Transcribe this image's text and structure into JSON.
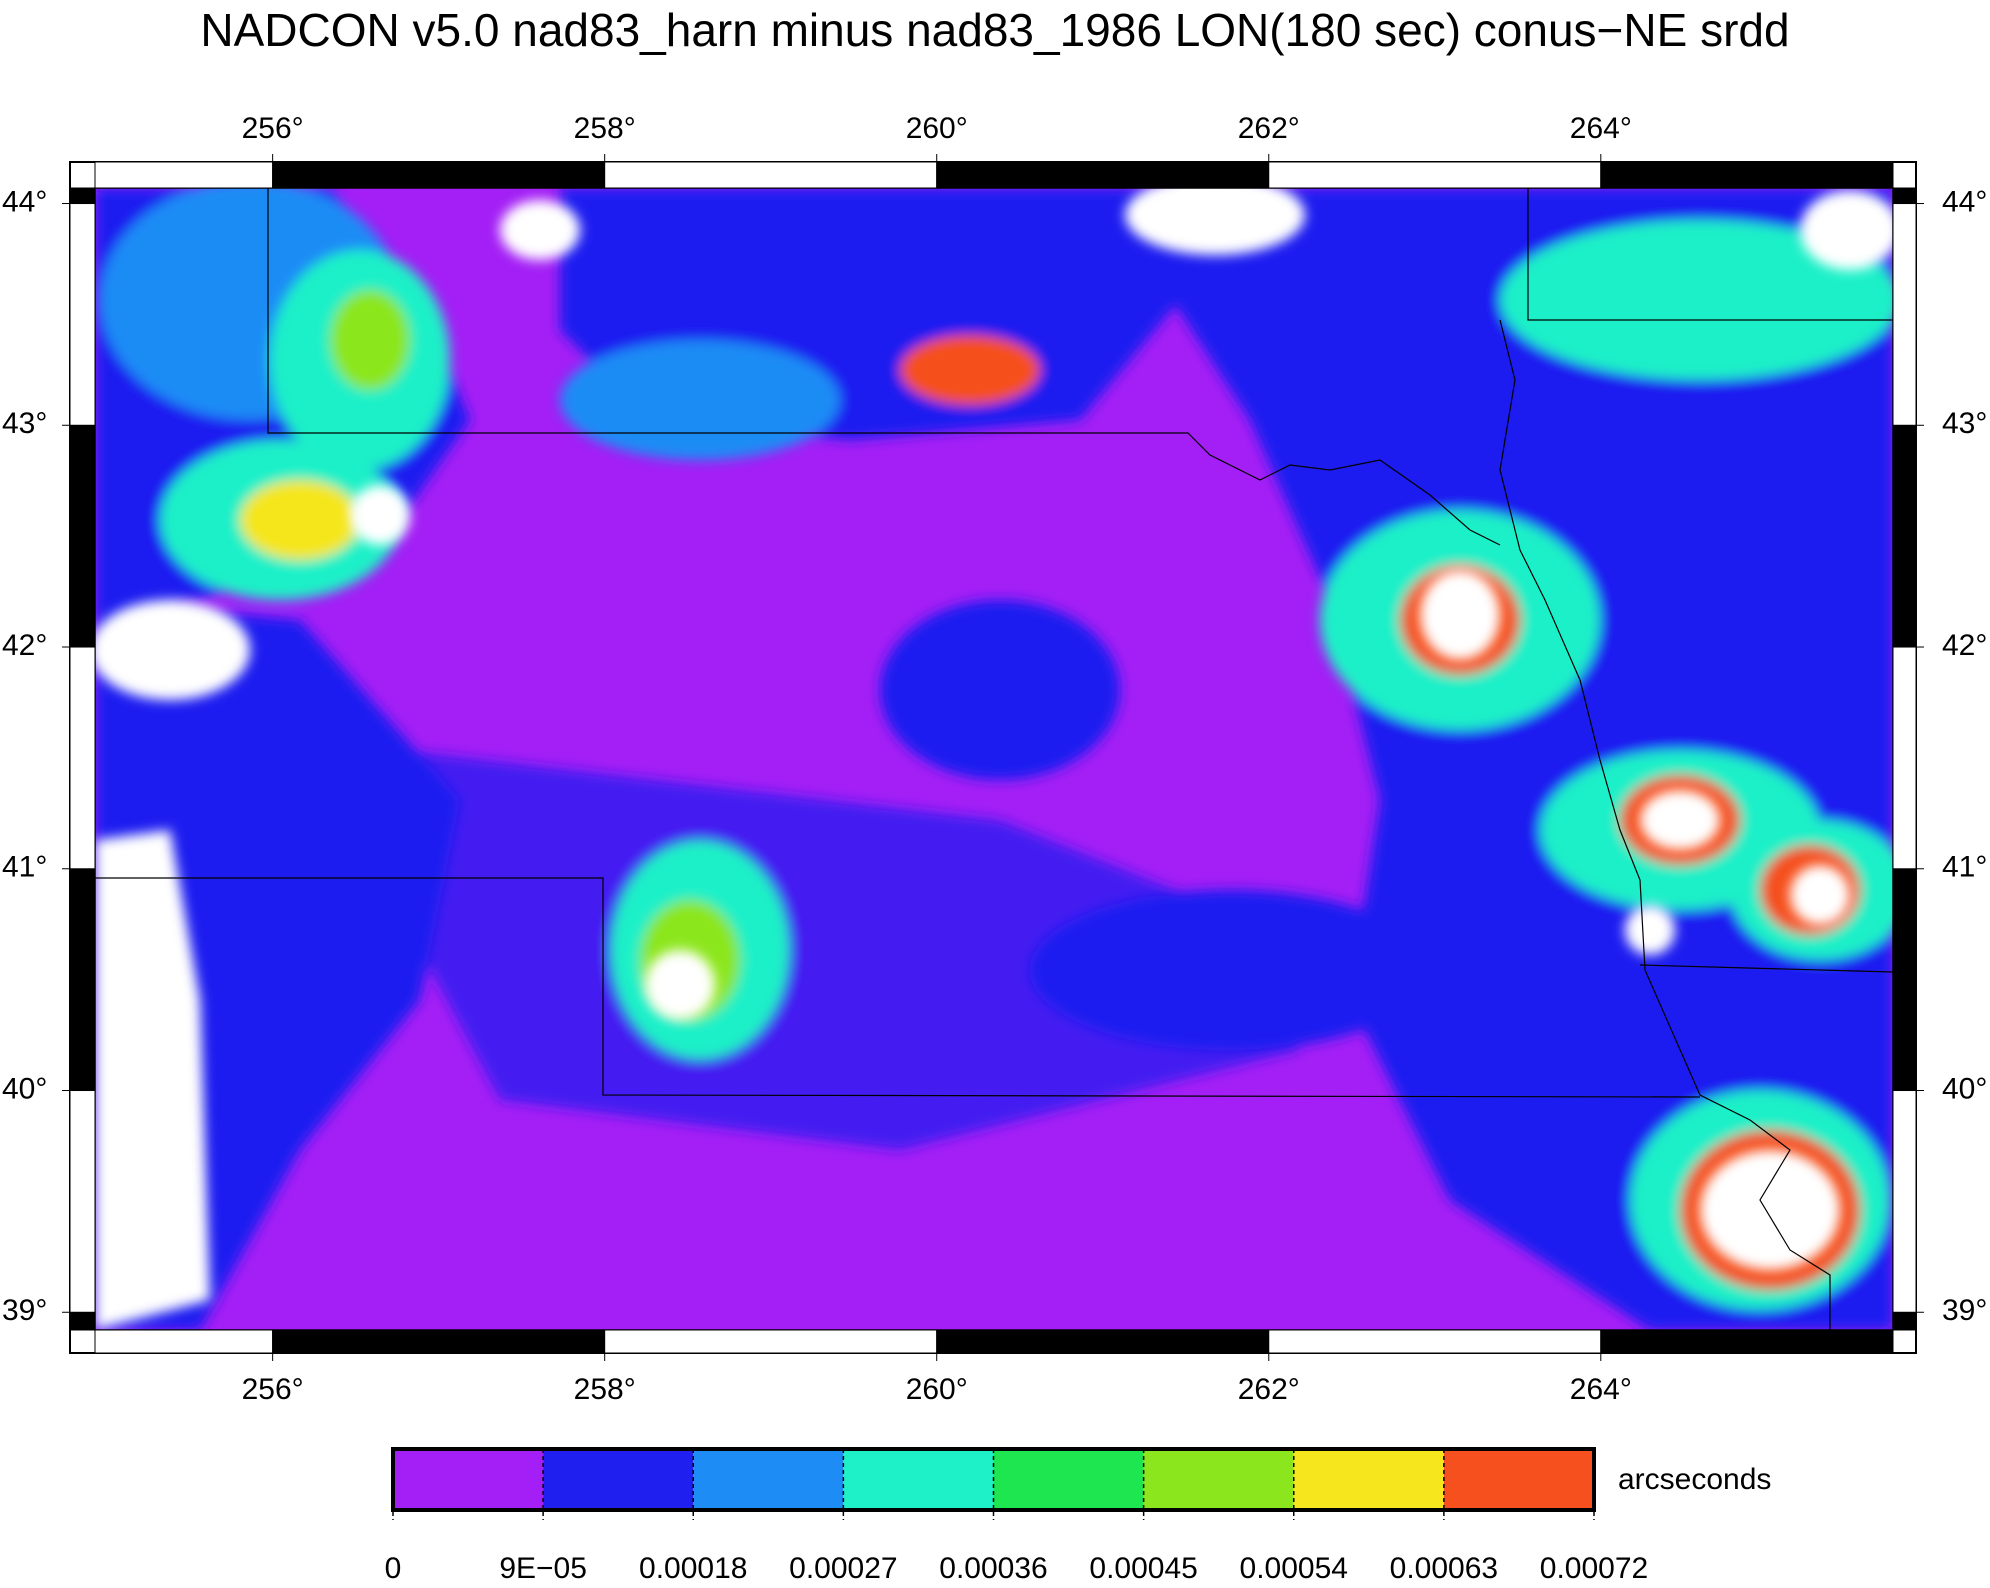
{
  "title": "NADCON v5.0 nad83_harn minus nad83_1986 LON(180 sec) conus−NE srdd",
  "map": {
    "xlim": [
      254.93,
      265.76
    ],
    "ylim": [
      38.92,
      44.07
    ],
    "xticks": [
      {
        "value": 256,
        "label": "256°"
      },
      {
        "value": 258,
        "label": "258°"
      },
      {
        "value": 260,
        "label": "260°"
      },
      {
        "value": 262,
        "label": "262°"
      },
      {
        "value": 264,
        "label": "264°"
      }
    ],
    "yticks": [
      {
        "value": 39,
        "label": "39°"
      },
      {
        "value": 40,
        "label": "40°"
      },
      {
        "value": 41,
        "label": "41°"
      },
      {
        "value": 42,
        "label": "42°"
      },
      {
        "value": 43,
        "label": "43°"
      },
      {
        "value": 44,
        "label": "44°"
      }
    ]
  },
  "colorbar": {
    "label": "arcseconds",
    "colors": [
      "#a31ff5",
      "#1f1ff0",
      "#1e8cf5",
      "#1ef0c8",
      "#1ee650",
      "#8ce61e",
      "#f5e61e",
      "#f5501e"
    ],
    "ticks": [
      {
        "value": 0,
        "label": "0"
      },
      {
        "value": 9e-05,
        "label": "9E−05"
      },
      {
        "value": 0.00018,
        "label": "0.00018"
      },
      {
        "value": 0.00027,
        "label": "0.00027"
      },
      {
        "value": 0.00036,
        "label": "0.00036"
      },
      {
        "value": 0.00045,
        "label": "0.00045"
      },
      {
        "value": 0.00054,
        "label": "0.00054"
      },
      {
        "value": 0.00063,
        "label": "0.00063"
      },
      {
        "value": 0.00072,
        "label": "0.00072"
      }
    ]
  }
}
